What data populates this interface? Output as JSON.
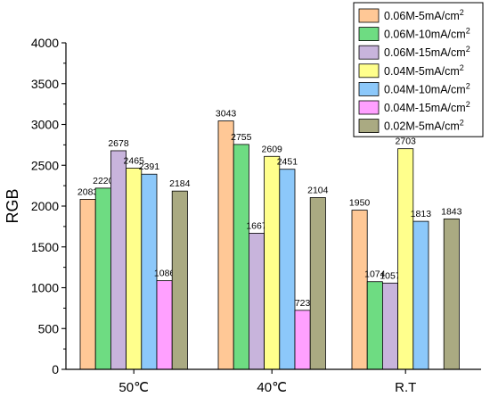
{
  "chart_data": {
    "type": "bar",
    "categories": [
      "50℃",
      "40℃",
      "R.T"
    ],
    "ylabel": "RGB",
    "xlabel": "",
    "ylim": [
      0,
      4000
    ],
    "yticks": [
      0,
      500,
      1000,
      1500,
      2000,
      2500,
      3000,
      3500,
      4000
    ],
    "legend_position": "top-right",
    "grid": false,
    "series": [
      {
        "name": "0.06M-5mA/cm",
        "sup": "2",
        "color": "#FFC896",
        "values": [
          2083,
          3043,
          1950
        ],
        "labels": [
          "2083",
          "3043",
          "1950"
        ]
      },
      {
        "name": "0.06M-10mA/cm",
        "sup": "2",
        "color": "#6EDC82",
        "values": [
          2220,
          2755,
          1074
        ],
        "labels": [
          "2220",
          "2755",
          "1074"
        ]
      },
      {
        "name": "0.06M-15mA/cm",
        "sup": "2",
        "color": "#C8B4DC",
        "values": [
          2678,
          1667,
          1057
        ],
        "labels": [
          "2678",
          "1667",
          "1057"
        ]
      },
      {
        "name": "0.04M-5mA/cm",
        "sup": "2",
        "color": "#FFFF8C",
        "values": [
          2465,
          2609,
          2703
        ],
        "labels": [
          "2465",
          "2609",
          "2703"
        ]
      },
      {
        "name": "0.04M-10mA/cm",
        "sup": "2",
        "color": "#8CC8FA",
        "values": [
          2391,
          2451,
          1813
        ],
        "labels": [
          "2391",
          "2451",
          "1813"
        ]
      },
      {
        "name": "0.04M-15mA/cm",
        "sup": "2",
        "color": "#FFA0FF",
        "values": [
          1086,
          723,
          null
        ],
        "labels": [
          "1086",
          "723",
          ""
        ]
      },
      {
        "name": "0.02M-5mA/cm",
        "sup": "2",
        "color": "#AAAA82",
        "values": [
          2184,
          2104,
          1843
        ],
        "labels": [
          "2184",
          "2104",
          "1843"
        ]
      }
    ]
  }
}
